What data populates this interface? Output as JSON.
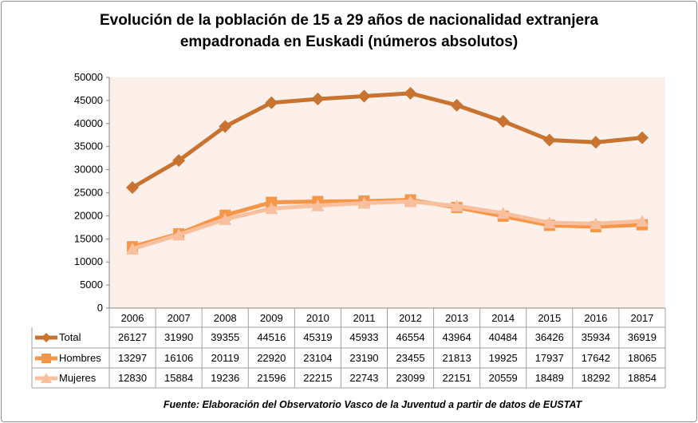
{
  "chart_data": {
    "type": "line",
    "title_line1": "Evolución de la población de 15 a 29 años de nacionalidad extranjera",
    "title_line2": "empadronada en Euskadi (números absolutos)",
    "source": "Fuente: Elaboración del Observatorio Vasco de la Juventud a partir de datos de EUSTAT",
    "x": [
      "2006",
      "2007",
      "2008",
      "2009",
      "2010",
      "2011",
      "2012",
      "2013",
      "2014",
      "2015",
      "2016",
      "2017"
    ],
    "ylim": [
      0,
      50000
    ],
    "yticks": [
      0,
      5000,
      10000,
      15000,
      20000,
      25000,
      30000,
      35000,
      40000,
      45000,
      50000
    ],
    "grid": false,
    "plot_background": "#FDF0EA",
    "legend_placement": "data-table",
    "series": [
      {
        "name": "Total",
        "marker": "diamond",
        "color": "#C8732F",
        "values": [
          26127,
          31990,
          39355,
          44516,
          45319,
          45933,
          46554,
          43964,
          40484,
          36426,
          35934,
          36919
        ]
      },
      {
        "name": "Hombres",
        "marker": "square",
        "color": "#F79646",
        "values": [
          13297,
          16106,
          20119,
          22920,
          23104,
          23190,
          23455,
          21813,
          19925,
          17937,
          17642,
          18065
        ]
      },
      {
        "name": "Mujeres",
        "marker": "triangle",
        "color": "#F9C0A0",
        "values": [
          12830,
          15884,
          19236,
          21596,
          22215,
          22743,
          23099,
          22151,
          20559,
          18489,
          18292,
          18854
        ]
      }
    ]
  }
}
